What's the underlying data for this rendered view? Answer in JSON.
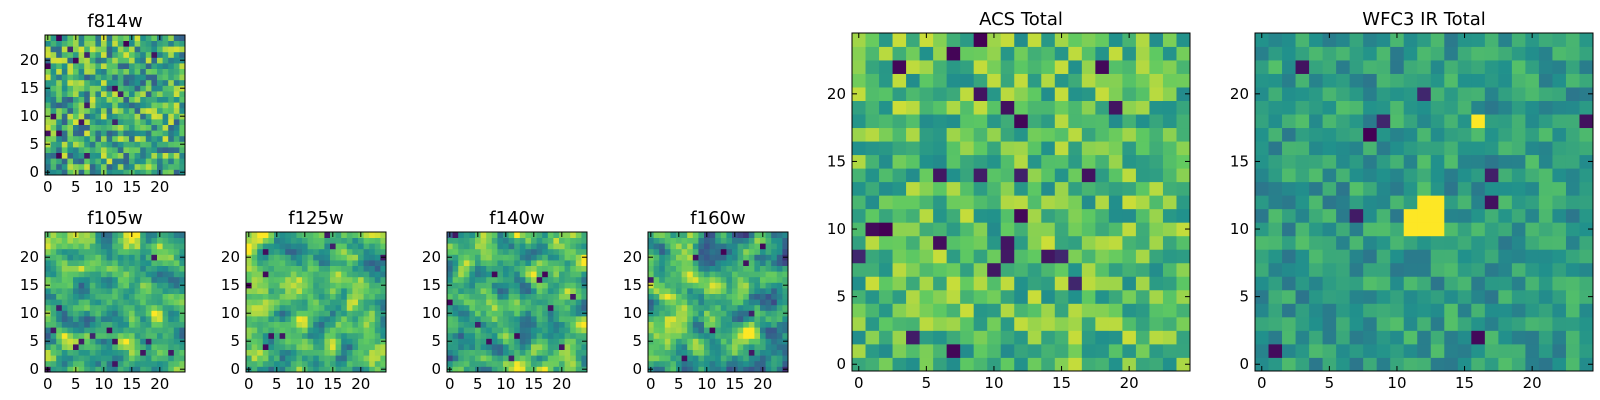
{
  "figure_title": "",
  "colormap": {
    "name": "viridis",
    "stops": [
      "#440154",
      "#3b528b",
      "#21918c",
      "#5ec962",
      "#fde725"
    ]
  },
  "chart_data": [
    {
      "type": "heatmap",
      "title": "f814w",
      "grid_size": 25,
      "xticks": [
        "0",
        "5",
        "10",
        "15",
        "20"
      ],
      "yticks": [
        "0",
        "5",
        "10",
        "15",
        "20"
      ],
      "value_range": [
        0,
        1
      ],
      "seed": 11,
      "mean": 0.62,
      "spread": 0.2,
      "dark_rate": 0.04,
      "smooth": 0
    },
    {
      "type": "heatmap",
      "title": "f105w",
      "grid_size": 25,
      "xticks": [
        "0",
        "5",
        "10",
        "15",
        "20"
      ],
      "yticks": [
        "0",
        "5",
        "10",
        "15",
        "20"
      ],
      "value_range": [
        0,
        1
      ],
      "seed": 23,
      "mean": 0.64,
      "spread": 0.2,
      "dark_rate": 0.015,
      "smooth": 1
    },
    {
      "type": "heatmap",
      "title": "f125w",
      "grid_size": 25,
      "xticks": [
        "0",
        "5",
        "10",
        "15",
        "20"
      ],
      "yticks": [
        "0",
        "5",
        "10",
        "15",
        "20"
      ],
      "value_range": [
        0,
        1
      ],
      "seed": 37,
      "mean": 0.66,
      "spread": 0.2,
      "dark_rate": 0.015,
      "smooth": 1
    },
    {
      "type": "heatmap",
      "title": "f140w",
      "grid_size": 25,
      "xticks": [
        "0",
        "5",
        "10",
        "15",
        "20"
      ],
      "yticks": [
        "0",
        "5",
        "10",
        "15",
        "20"
      ],
      "value_range": [
        0,
        1
      ],
      "seed": 41,
      "mean": 0.63,
      "spread": 0.21,
      "dark_rate": 0.015,
      "smooth": 1
    },
    {
      "type": "heatmap",
      "title": "f160w",
      "grid_size": 25,
      "xticks": [
        "0",
        "5",
        "10",
        "15",
        "20"
      ],
      "yticks": [
        "0",
        "5",
        "10",
        "15",
        "20"
      ],
      "value_range": [
        0,
        1
      ],
      "seed": 53,
      "mean": 0.62,
      "spread": 0.21,
      "dark_rate": 0.015,
      "smooth": 1
    },
    {
      "type": "heatmap",
      "title": "ACS Total",
      "grid_size": 25,
      "xticks": [
        "0",
        "5",
        "10",
        "15",
        "20"
      ],
      "yticks": [
        "0",
        "5",
        "10",
        "15",
        "20"
      ],
      "value_range": [
        0,
        1
      ],
      "seed": 67,
      "mean": 0.7,
      "spread": 0.14,
      "dark_rate": 0.03,
      "smooth": 0
    },
    {
      "type": "heatmap",
      "title": "WFC3 IR Total",
      "grid_size": 25,
      "xticks": [
        "0",
        "5",
        "10",
        "15",
        "20"
      ],
      "yticks": [
        "0",
        "5",
        "10",
        "15",
        "20"
      ],
      "value_range": [
        0,
        1
      ],
      "seed": 79,
      "mean": 0.55,
      "spread": 0.1,
      "dark_rate": 0.025,
      "smooth": 0,
      "bright_cells": [
        [
          11,
          10
        ],
        [
          12,
          10
        ],
        [
          13,
          10
        ],
        [
          11,
          11
        ],
        [
          12,
          11
        ],
        [
          13,
          11
        ],
        [
          12,
          12
        ],
        [
          13,
          12
        ],
        [
          16,
          18
        ]
      ]
    }
  ]
}
